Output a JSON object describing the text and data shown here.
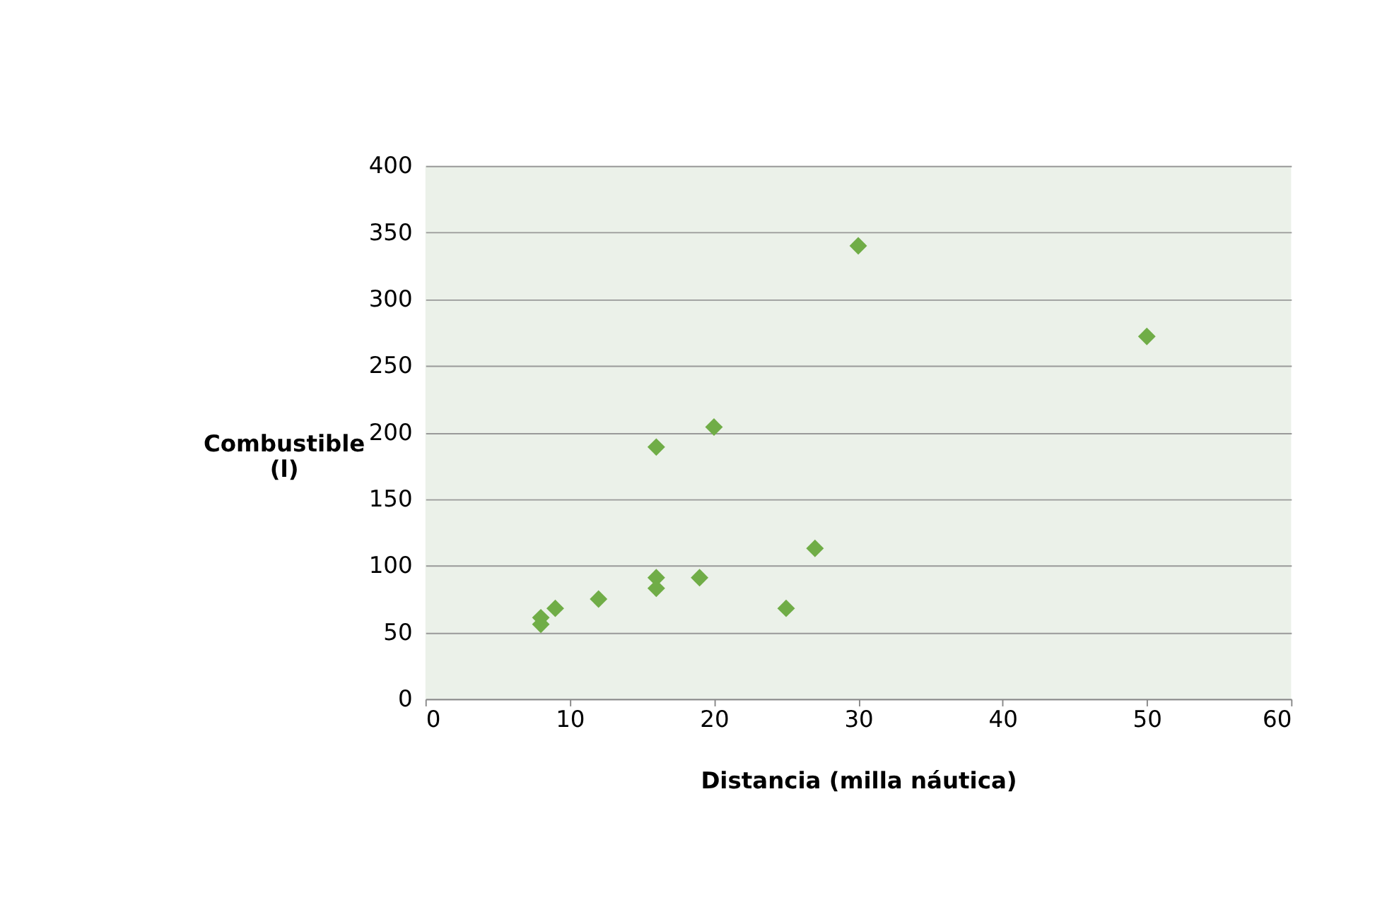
{
  "chart_data": {
    "type": "scatter",
    "xlabel": "Distancia (milla náutica)",
    "ylabel": "Combustible (l)",
    "x": [
      8,
      8,
      9,
      12,
      16,
      16,
      16,
      19,
      20,
      25,
      27,
      30,
      50
    ],
    "series": [
      {
        "color": "#70ad47",
        "values": [
          56,
          61,
          68,
          75,
          189,
          91,
          83,
          91,
          204,
          68,
          113,
          340,
          272
        ]
      }
    ],
    "xlim": [
      0,
      60
    ],
    "xticks": [
      0,
      10,
      20,
      30,
      40,
      50,
      60
    ],
    "ylim": [
      0,
      400
    ],
    "yticks": [
      0,
      50,
      100,
      150,
      200,
      250,
      300,
      350,
      400
    ],
    "grid": "y",
    "marker": "diamond"
  }
}
